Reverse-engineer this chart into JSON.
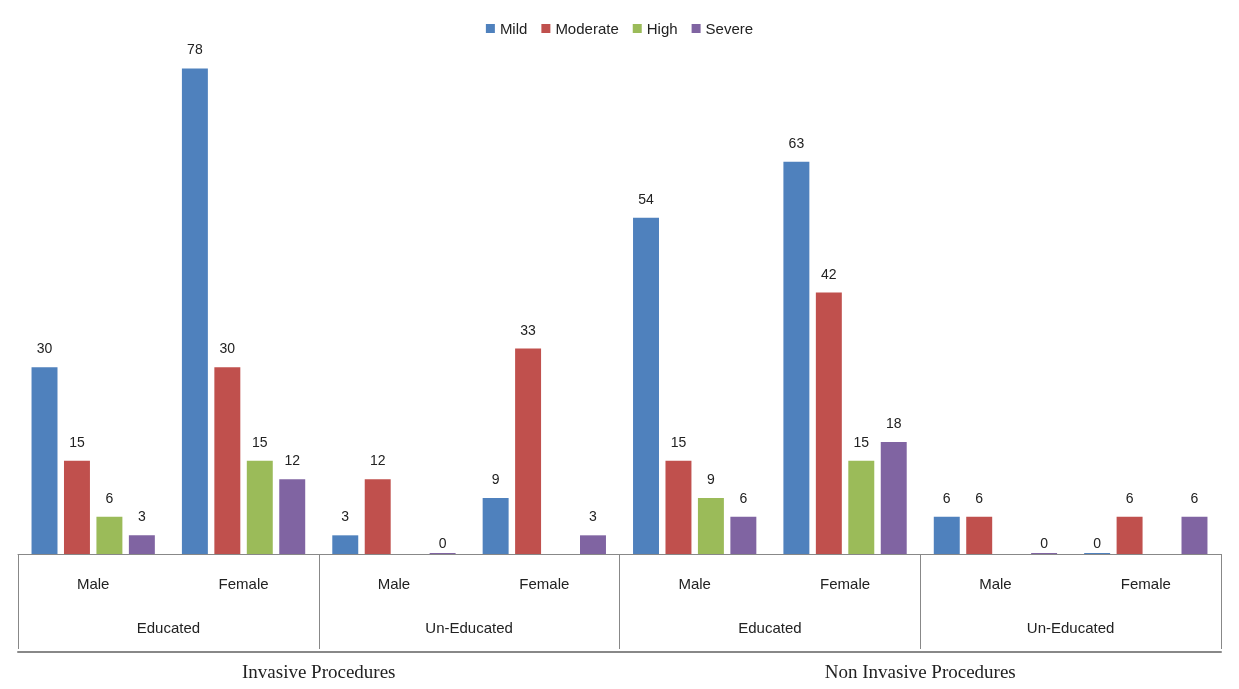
{
  "chart_data": {
    "type": "bar",
    "categories": [
      "Male",
      "Female",
      "Male",
      "Female",
      "Male",
      "Female",
      "Male",
      "Female"
    ],
    "series": [
      {
        "name": "Mild",
        "color": "#4f81bd",
        "values": [
          30,
          78,
          3,
          9,
          54,
          63,
          6,
          0
        ]
      },
      {
        "name": "Moderate",
        "color": "#c0504d",
        "values": [
          15,
          30,
          12,
          33,
          15,
          42,
          6,
          6
        ]
      },
      {
        "name": "High",
        "color": "#9bbb59",
        "values": [
          6,
          15,
          null,
          null,
          9,
          15,
          null,
          null
        ]
      },
      {
        "name": "Severe",
        "color": "#8064a2",
        "values": [
          3,
          12,
          0,
          3,
          6,
          18,
          0,
          6
        ]
      }
    ],
    "annotations": [
      "Educated",
      "Un-Educated",
      "Educated",
      "Un-Educated",
      "Invasive Procedures",
      "Non Invasive Procedures"
    ],
    "data_labels": true,
    "legend": "top",
    "grid": false
  }
}
